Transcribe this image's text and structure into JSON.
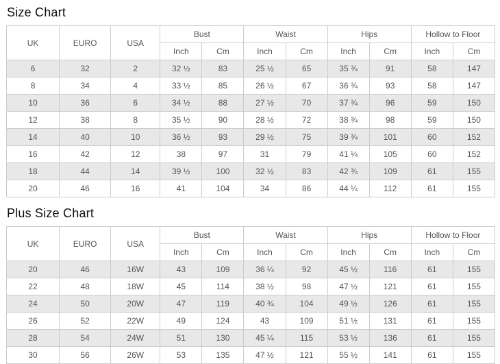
{
  "columns": {
    "uk": "UK",
    "euro": "EURO",
    "usa": "USA",
    "groups": [
      "Bust",
      "Waist",
      "Hips",
      "Hollow to Floor"
    ],
    "sub": {
      "inch": "Inch",
      "cm": "Cm"
    }
  },
  "size_chart": {
    "title": "Size Chart",
    "rows": [
      [
        "6",
        "32",
        "2",
        "32 ½",
        "83",
        "25 ½",
        "65",
        "35 ¾",
        "91",
        "58",
        "147"
      ],
      [
        "8",
        "34",
        "4",
        "33 ½",
        "85",
        "26 ½",
        "67",
        "36 ¾",
        "93",
        "58",
        "147"
      ],
      [
        "10",
        "36",
        "6",
        "34 ½",
        "88",
        "27 ½",
        "70",
        "37 ¾",
        "96",
        "59",
        "150"
      ],
      [
        "12",
        "38",
        "8",
        "35 ½",
        "90",
        "28 ½",
        "72",
        "38 ¾",
        "98",
        "59",
        "150"
      ],
      [
        "14",
        "40",
        "10",
        "36 ½",
        "93",
        "29 ½",
        "75",
        "39 ¾",
        "101",
        "60",
        "152"
      ],
      [
        "16",
        "42",
        "12",
        "38",
        "97",
        "31",
        "79",
        "41 ¼",
        "105",
        "60",
        "152"
      ],
      [
        "18",
        "44",
        "14",
        "39 ½",
        "100",
        "32 ½",
        "83",
        "42 ¾",
        "109",
        "61",
        "155"
      ],
      [
        "20",
        "46",
        "16",
        "41",
        "104",
        "34",
        "86",
        "44 ¼",
        "112",
        "61",
        "155"
      ]
    ]
  },
  "plus_size_chart": {
    "title": "Plus Size Chart",
    "rows": [
      [
        "20",
        "46",
        "16W",
        "43",
        "109",
        "36 ¼",
        "92",
        "45 ½",
        "116",
        "61",
        "155"
      ],
      [
        "22",
        "48",
        "18W",
        "45",
        "114",
        "38 ½",
        "98",
        "47 ½",
        "121",
        "61",
        "155"
      ],
      [
        "24",
        "50",
        "20W",
        "47",
        "119",
        "40 ¾",
        "104",
        "49 ½",
        "126",
        "61",
        "155"
      ],
      [
        "26",
        "52",
        "22W",
        "49",
        "124",
        "43",
        "109",
        "51 ½",
        "131",
        "61",
        "155"
      ],
      [
        "28",
        "54",
        "24W",
        "51",
        "130",
        "45 ¼",
        "115",
        "53 ½",
        "136",
        "61",
        "155"
      ],
      [
        "30",
        "56",
        "26W",
        "53",
        "135",
        "47 ½",
        "121",
        "55 ½",
        "141",
        "61",
        "155"
      ]
    ]
  },
  "colors": {
    "stripe": "#e8e8e8",
    "border": "#cccccc",
    "cell_text": "#555555",
    "title_text": "#111111"
  }
}
